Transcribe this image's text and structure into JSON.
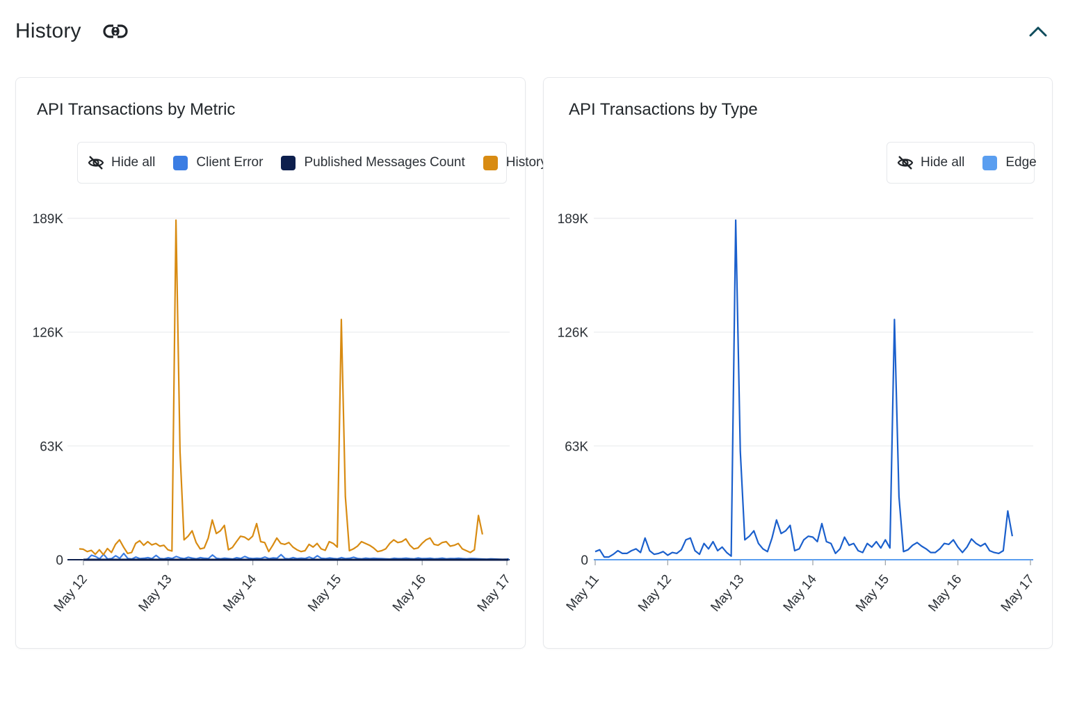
{
  "header": {
    "title": "History",
    "link_icon": "link-icon",
    "collapse_icon": "chevron-up-icon"
  },
  "colors": {
    "client_error": "#3b7de3",
    "published_messages": "#0d1f4d",
    "history": "#d88b12",
    "edge": "#5a9ef0",
    "edge_line": "#1a5fcc",
    "grid": "#e9ebee",
    "accent": "#0f4c5c"
  },
  "legend_hide_all_icon": "eye-off-icon",
  "chart_data": [
    {
      "type": "line",
      "title": "API Transactions by Metric",
      "legend": {
        "hide_all": "Hide all",
        "placement": "top-right"
      },
      "x_range": [
        "May 12",
        "May 17"
      ],
      "x_ticks": [
        "May 12",
        "May 13",
        "May 14",
        "May 15",
        "May 16",
        "May 17"
      ],
      "y_ticks": [
        "0",
        "63K",
        "126K",
        "189K"
      ],
      "ylim": [
        0,
        189000
      ],
      "grid": true,
      "series": [
        {
          "name": "Client Error",
          "color": "#3b7de3",
          "x_start": 0,
          "x_step": 0.04762,
          "values": [
            0,
            300,
            2500,
            1800,
            500,
            3000,
            400,
            600,
            2200,
            800,
            3500,
            700,
            400,
            1500,
            600,
            800,
            1200,
            600,
            2400,
            700,
            500,
            1100,
            700,
            1800,
            1000,
            600,
            1400,
            900,
            500,
            1200,
            800,
            700,
            2600,
            800,
            500,
            900,
            600,
            400,
            1100,
            700,
            1800,
            900,
            600,
            800,
            700,
            1500,
            600,
            1000,
            800,
            2800,
            700,
            500,
            1200,
            600,
            900,
            700,
            1500,
            600,
            2200,
            800,
            600,
            1000,
            700,
            500,
            1200,
            600,
            800,
            1400,
            700,
            500,
            900,
            600,
            800,
            700,
            600,
            500,
            400,
            800,
            600,
            700,
            900,
            600,
            500,
            1000,
            600,
            700,
            800,
            500,
            600,
            900,
            500,
            700,
            600,
            800,
            600,
            500,
            700,
            600,
            500,
            400,
            300,
            500,
            400,
            300,
            200,
            300,
            400,
            200,
            300,
            200,
            300,
            200,
            300,
            200,
            300,
            200
          ]
        },
        {
          "name": "Published Messages Count",
          "color": "#0d1f4d",
          "x_start": 0,
          "x_step": 0.04762,
          "values": [
            0,
            0,
            0,
            0,
            0,
            0,
            0,
            0,
            0,
            0,
            0,
            0,
            0,
            0,
            0,
            0,
            0,
            0,
            0,
            0,
            0,
            0,
            0,
            0,
            0,
            0,
            0,
            0,
            0,
            0,
            0,
            0,
            0,
            0,
            0,
            0,
            0,
            0,
            0,
            0,
            0,
            0,
            0,
            0,
            0,
            0,
            0,
            0,
            0,
            0,
            0,
            0,
            0,
            0,
            0,
            0,
            0,
            0,
            0,
            0,
            0,
            0,
            0,
            0,
            0,
            0,
            0,
            0,
            0,
            0,
            0,
            0,
            0,
            0,
            0,
            0,
            0,
            0,
            0,
            0,
            0,
            0,
            0,
            0,
            0,
            0,
            0,
            0,
            0,
            0,
            0,
            0,
            0,
            0,
            0,
            0,
            0,
            0,
            0,
            0,
            0,
            0,
            0,
            0,
            0,
            0,
            0,
            0,
            0,
            0,
            0,
            0,
            0,
            0,
            0,
            0
          ]
        },
        {
          "name": "History",
          "color": "#d88b12",
          "x_start": -0.05,
          "x_step": 0.04762,
          "values": [
            6000,
            5800,
            4500,
            5200,
            3000,
            5500,
            2800,
            6200,
            4000,
            8500,
            11000,
            7000,
            3500,
            4000,
            9000,
            10500,
            8000,
            10000,
            8200,
            9000,
            7500,
            8000,
            5500,
            4800,
            188000,
            60000,
            11000,
            13000,
            16000,
            9500,
            6000,
            6500,
            12000,
            22000,
            14500,
            16000,
            19000,
            5500,
            6800,
            10000,
            13000,
            12500,
            11000,
            13000,
            20000,
            10000,
            9500,
            4500,
            8000,
            12000,
            9000,
            8500,
            9500,
            7000,
            5500,
            4500,
            5000,
            8500,
            7000,
            9000,
            6000,
            5200,
            10000,
            9000,
            7000,
            133000,
            35000,
            5000,
            6000,
            7500,
            10000,
            9000,
            8000,
            6500,
            4500,
            5000,
            6000,
            9000,
            11000,
            9500,
            10000,
            11500,
            8000,
            6000,
            6500,
            9000,
            11000,
            12000,
            8500,
            8000,
            9500,
            10000,
            7500,
            8000,
            9000,
            6000,
            5000,
            4000,
            5500,
            24500,
            14000
          ]
        }
      ]
    },
    {
      "type": "line",
      "title": "API Transactions by Type",
      "legend": {
        "hide_all": "Hide all",
        "placement": "top-right"
      },
      "x_range": [
        "May 11",
        "May 17"
      ],
      "x_ticks": [
        "May 11",
        "May 12",
        "May 13",
        "May 14",
        "May 15",
        "May 16",
        "May 17"
      ],
      "y_ticks": [
        "0",
        "63K",
        "126K",
        "189K"
      ],
      "ylim": [
        0,
        189000
      ],
      "grid": true,
      "series": [
        {
          "name": "Edge",
          "color": "#1a5fcc",
          "x_start": 0.0,
          "x_step": 0.0625,
          "values": [
            4500,
            5500,
            1500,
            1500,
            3000,
            5000,
            3500,
            3500,
            5000,
            6000,
            4000,
            12000,
            5000,
            3000,
            3500,
            4500,
            2500,
            4000,
            3500,
            5500,
            11000,
            12000,
            5000,
            3000,
            9000,
            6000,
            10000,
            5000,
            7000,
            4000,
            2000,
            188000,
            60000,
            11000,
            13000,
            16000,
            9000,
            6000,
            4500,
            12000,
            22000,
            14500,
            16000,
            19000,
            5000,
            6000,
            11000,
            13000,
            12500,
            10000,
            20000,
            10000,
            9000,
            3500,
            6000,
            12500,
            8000,
            9000,
            5000,
            4000,
            9000,
            7000,
            10000,
            6500,
            11000,
            6500,
            133000,
            35000,
            4500,
            5500,
            8000,
            9500,
            7500,
            6000,
            4000,
            4000,
            6000,
            9000,
            8500,
            11000,
            7000,
            4000,
            7000,
            11500,
            9000,
            7500,
            9000,
            5000,
            4000,
            3500,
            5000,
            27000,
            13000
          ]
        }
      ]
    }
  ]
}
